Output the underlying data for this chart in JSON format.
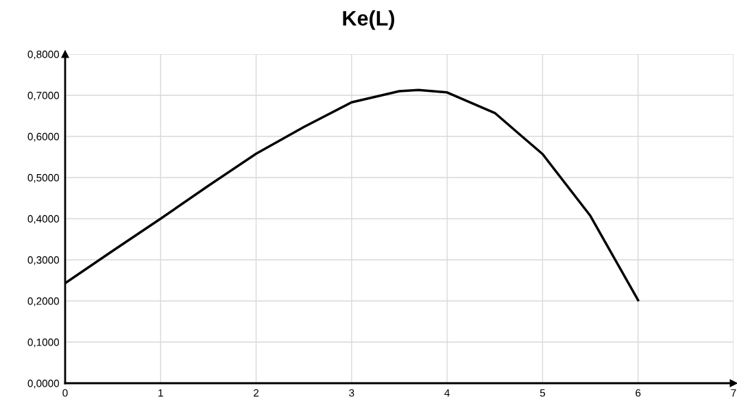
{
  "chart_data": {
    "type": "line",
    "title": "Ke(L)",
    "x": [
      0,
      0.5,
      1,
      1.5,
      2,
      2.5,
      3,
      3.5,
      3.7,
      4,
      4.5,
      5,
      5.5,
      6
    ],
    "series": [
      {
        "color": "#000000",
        "values": [
          0.243,
          0.322,
          0.4,
          0.48,
          0.558,
          0.623,
          0.683,
          0.71,
          0.713,
          0.707,
          0.657,
          0.557,
          0.407,
          0.202
        ]
      }
    ],
    "xlim": [
      0,
      7
    ],
    "xticks": [
      0,
      1,
      2,
      3,
      4,
      5,
      6,
      7
    ],
    "ylim": [
      0,
      0.8
    ],
    "yticks": [
      {
        "value": 0,
        "label": "0,0000"
      },
      {
        "value": 0.1,
        "label": "0,1000"
      },
      {
        "value": 0.2,
        "label": "0,2000"
      },
      {
        "value": 0.3,
        "label": "0,3000"
      },
      {
        "value": 0.4,
        "label": "0,4000"
      },
      {
        "value": 0.5,
        "label": "0,5000"
      },
      {
        "value": 0.6,
        "label": "0,6000"
      },
      {
        "value": 0.7,
        "label": "0,7000"
      },
      {
        "value": 0.8,
        "label": "0,8000"
      }
    ],
    "grid": true,
    "marker": "none",
    "line_style": "solid",
    "legend": false
  }
}
